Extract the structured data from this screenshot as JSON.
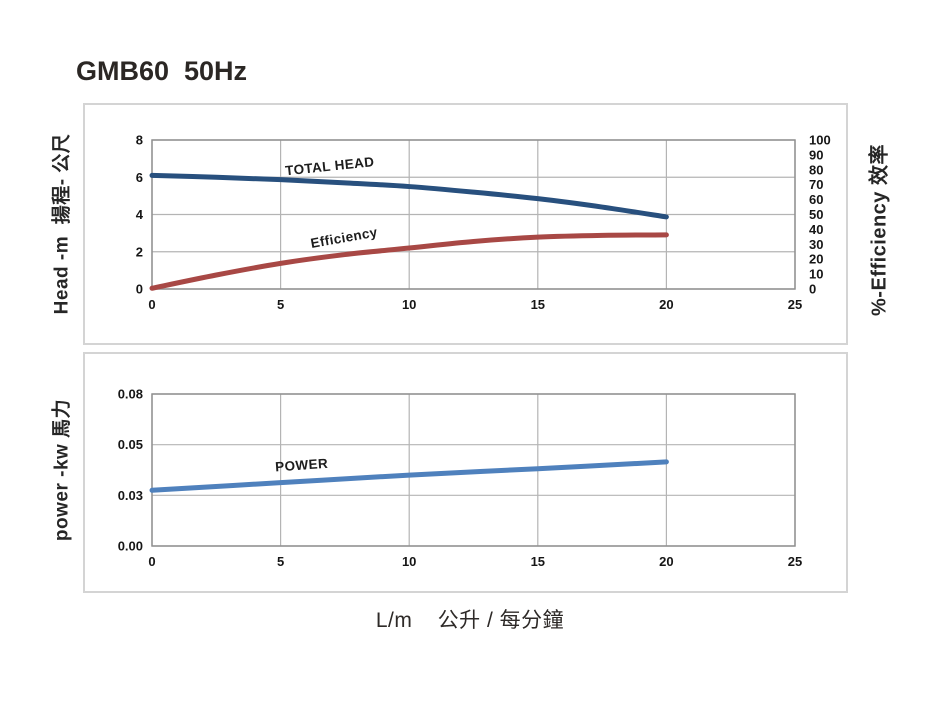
{
  "title": "GMB60  50Hz",
  "xlabel": "L/m    公升 / 每分鐘",
  "colors": {
    "head_line": "#28507e",
    "efficiency_line": "#a84845",
    "power_line": "#4f81bd",
    "gridline": "#b4b4b4",
    "plot_border": "#909090",
    "box_border": "#d4d4d4",
    "text_dark": "#1d1d1d"
  },
  "chart_data": [
    {
      "type": "line",
      "name": "head-efficiency-chart",
      "grid": "on",
      "x_axis": {
        "range": [
          0,
          25
        ],
        "ticks": [
          0,
          5,
          10,
          15,
          20,
          25
        ]
      },
      "y_axis_left": {
        "label": "Head -m  揚程- 公尺",
        "range": [
          0,
          8
        ],
        "ticks": [
          0,
          2,
          4,
          6,
          8
        ]
      },
      "y_axis_right": {
        "label": "%-Efficiency 效率",
        "range": [
          0,
          100
        ],
        "ticks": [
          0,
          10,
          20,
          30,
          40,
          50,
          60,
          70,
          80,
          90,
          100
        ]
      },
      "series": [
        {
          "name": "TOTAL HEAD",
          "axis": "left",
          "color_key": "head_line",
          "x": [
            0,
            2.5,
            5,
            7.5,
            10,
            12.5,
            15,
            17.5,
            20
          ],
          "y": [
            6.1,
            6.0,
            5.87,
            5.7,
            5.5,
            5.2,
            4.85,
            4.4,
            3.87
          ]
        },
        {
          "name": "Efficiency",
          "axis": "right",
          "color_key": "efficiency_line",
          "x": [
            0,
            2.5,
            5,
            7.5,
            10,
            12.5,
            15,
            17.5,
            20
          ],
          "y": [
            0.5,
            9.4,
            17.2,
            23.1,
            27.5,
            31.9,
            34.8,
            36.0,
            36.3
          ]
        }
      ],
      "annotations": [
        {
          "text": "TOTAL HEAD",
          "axis": "left",
          "x": 5.2,
          "y": 6.1,
          "angle": -6
        },
        {
          "text": "Efficiency",
          "axis": "right",
          "x": 6.2,
          "y": 27.5,
          "angle": -10
        }
      ]
    },
    {
      "type": "line",
      "name": "power-chart",
      "grid": "on",
      "x_axis": {
        "range": [
          0,
          25
        ],
        "ticks": [
          0,
          5,
          10,
          15,
          20,
          25
        ]
      },
      "y_axis_left": {
        "label": "power -kw 馬力",
        "tick_values": [
          0,
          0.03,
          0.05,
          0.08
        ],
        "tick_labels": [
          "0.00",
          "0.03",
          "0.05",
          "0.08"
        ]
      },
      "series": [
        {
          "name": "POWER",
          "axis": "left",
          "color_key": "power_line",
          "x": [
            0,
            5,
            10,
            15,
            20
          ],
          "y": [
            0.032,
            0.035,
            0.038,
            0.0405,
            0.0432
          ]
        }
      ],
      "annotations": [
        {
          "text": "POWER",
          "axis": "left",
          "x": 4.8,
          "y": 0.0394,
          "angle": -4
        }
      ]
    }
  ]
}
